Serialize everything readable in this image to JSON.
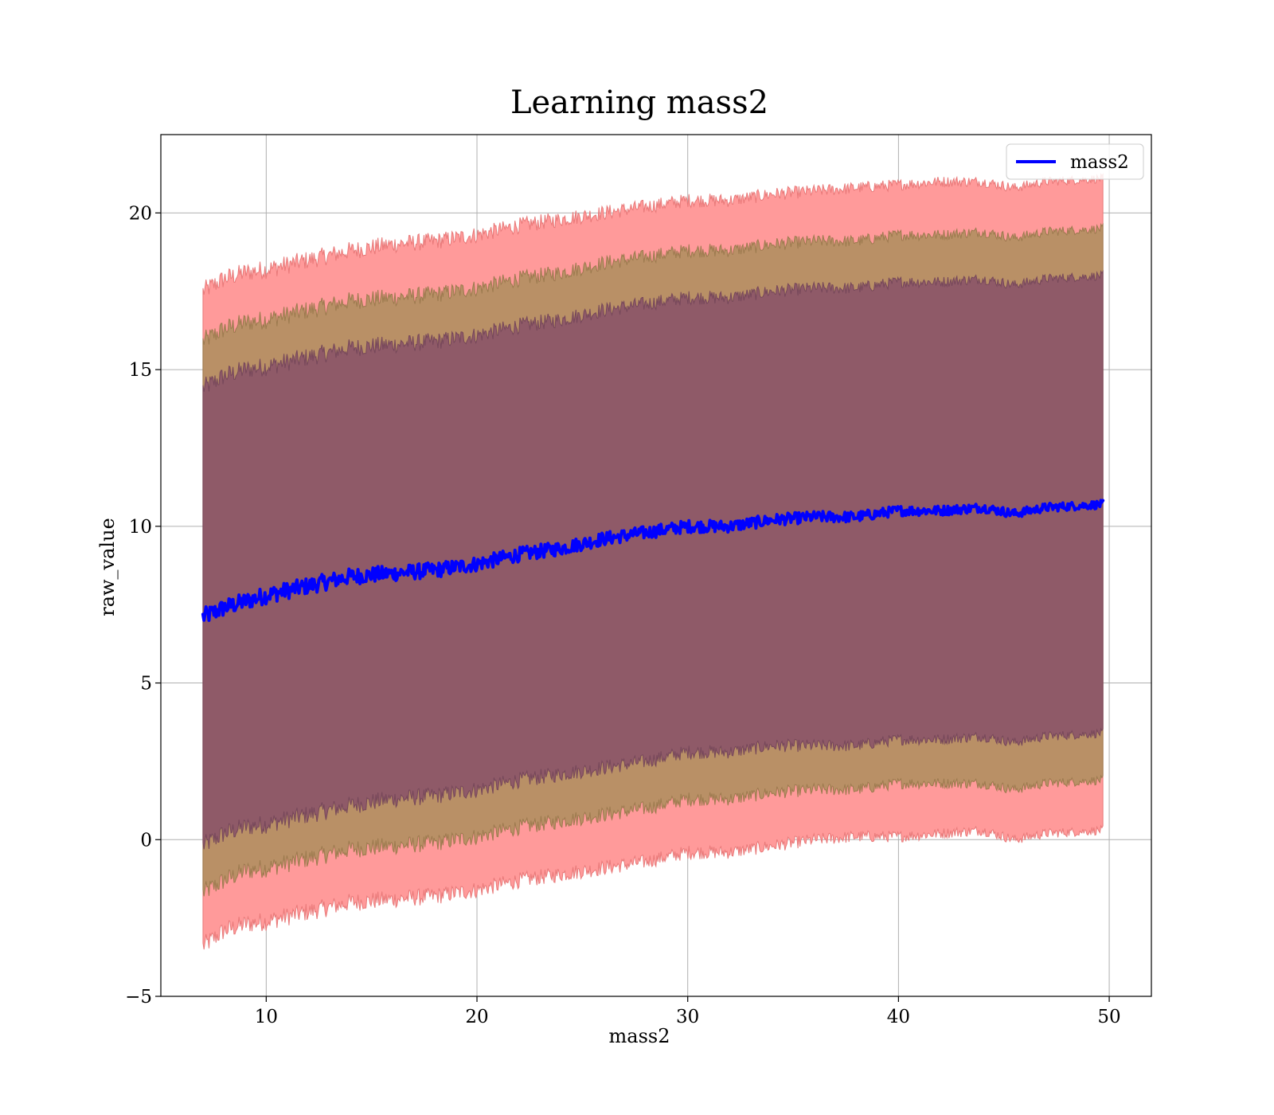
{
  "chart_data": {
    "type": "area",
    "title": "Learning mass2",
    "xlabel": "mass2",
    "ylabel": "raw_value",
    "xlim": [
      5,
      52
    ],
    "ylim": [
      -5,
      22.5
    ],
    "xticks": [
      10,
      20,
      30,
      40,
      50
    ],
    "yticks": [
      -5,
      0,
      5,
      10,
      15,
      20
    ],
    "grid": true,
    "legend": {
      "position": "top-right",
      "entries": [
        "mass2"
      ]
    },
    "colors": {
      "mean_line": "#0000ff",
      "band_3sigma": "#ff9a9a",
      "band_2sigma": "#b99066",
      "band_1sigma": "#8f5a68"
    },
    "x": [
      7.0,
      8.0,
      9.0,
      10.0,
      12.0,
      14.0,
      16.0,
      18.0,
      20.0,
      22.0,
      24.0,
      26.0,
      28.0,
      30.0,
      32.0,
      34.0,
      36.0,
      38.0,
      40.0,
      42.0,
      44.0,
      45.5,
      47.0,
      49.7
    ],
    "series": [
      {
        "name": "mass2",
        "role": "mean",
        "values": [
          7.1,
          7.4,
          7.6,
          7.8,
          8.1,
          8.4,
          8.5,
          8.6,
          8.8,
          9.1,
          9.3,
          9.6,
          9.8,
          10.0,
          10.0,
          10.2,
          10.3,
          10.3,
          10.5,
          10.5,
          10.6,
          10.4,
          10.6,
          10.7
        ]
      }
    ],
    "bands": [
      {
        "level": "3sigma",
        "upper": [
          17.5,
          17.9,
          18.1,
          18.2,
          18.5,
          18.8,
          19.0,
          19.1,
          19.3,
          19.6,
          19.8,
          20.0,
          20.2,
          20.4,
          20.4,
          20.6,
          20.7,
          20.8,
          20.9,
          21.0,
          21.0,
          20.8,
          21.0,
          21.1
        ],
        "lower": [
          -3.4,
          -2.9,
          -2.7,
          -2.6,
          -2.3,
          -2.0,
          -1.9,
          -1.8,
          -1.6,
          -1.3,
          -1.1,
          -0.9,
          -0.7,
          -0.4,
          -0.4,
          -0.2,
          0.0,
          0.1,
          0.1,
          0.2,
          0.3,
          0.0,
          0.2,
          0.3
        ]
      },
      {
        "level": "2sigma",
        "upper": [
          15.9,
          16.3,
          16.5,
          16.6,
          16.9,
          17.2,
          17.3,
          17.4,
          17.6,
          17.9,
          18.1,
          18.4,
          18.6,
          18.8,
          18.8,
          19.0,
          19.1,
          19.1,
          19.3,
          19.3,
          19.4,
          19.2,
          19.4,
          19.5
        ],
        "lower": [
          -1.7,
          -1.3,
          -1.0,
          -0.9,
          -0.6,
          -0.3,
          -0.2,
          -0.1,
          0.1,
          0.4,
          0.6,
          0.8,
          1.0,
          1.3,
          1.3,
          1.5,
          1.6,
          1.6,
          1.8,
          1.8,
          1.8,
          1.6,
          1.8,
          1.9
        ]
      },
      {
        "level": "1sigma",
        "upper": [
          14.4,
          14.8,
          15.0,
          15.1,
          15.4,
          15.7,
          15.8,
          15.9,
          16.1,
          16.4,
          16.6,
          16.9,
          17.1,
          17.3,
          17.3,
          17.5,
          17.6,
          17.6,
          17.8,
          17.8,
          17.9,
          17.7,
          17.9,
          18.0
        ],
        "lower": [
          -0.2,
          0.2,
          0.4,
          0.5,
          0.8,
          1.1,
          1.3,
          1.4,
          1.6,
          1.9,
          2.1,
          2.3,
          2.5,
          2.8,
          2.8,
          3.0,
          3.0,
          3.0,
          3.2,
          3.2,
          3.3,
          3.1,
          3.3,
          3.4
        ]
      }
    ]
  }
}
